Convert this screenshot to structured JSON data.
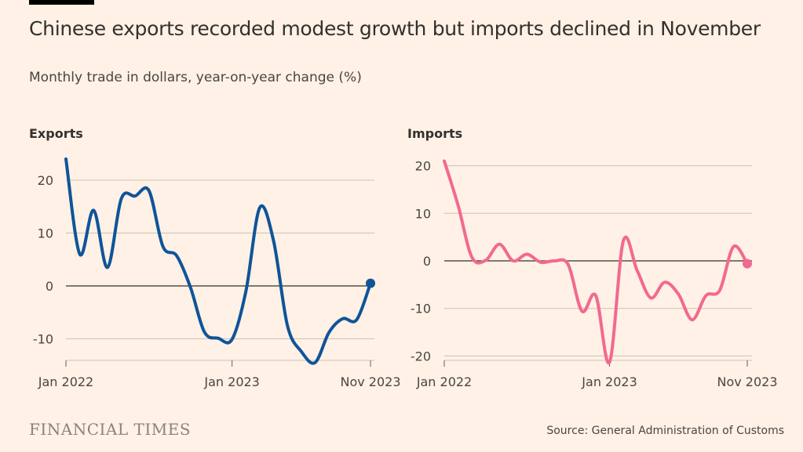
{
  "title": "Chinese exports recorded modest growth but imports declined in November",
  "subtitle": "Monthly trade in dollars, year-on-year change (%)",
  "source": "Source: General Administration of Customs",
  "logo": "FINANCIAL TIMES",
  "chart_data": [
    {
      "type": "line",
      "title": "Exports",
      "color": "#0f5499",
      "x": [
        "2022-01",
        "2022-02",
        "2022-03",
        "2022-04",
        "2022-05",
        "2022-06",
        "2022-07",
        "2022-08",
        "2022-09",
        "2022-10",
        "2022-11",
        "2022-12",
        "2023-01",
        "2023-02",
        "2023-03",
        "2023-04",
        "2023-05",
        "2023-06",
        "2023-07",
        "2023-08",
        "2023-09",
        "2023-10",
        "2023-11"
      ],
      "values": [
        24,
        6,
        14.3,
        3.5,
        16.5,
        17,
        18,
        7.5,
        5.7,
        -0.3,
        -8.7,
        -9.9,
        -10.1,
        -1,
        14.8,
        8.5,
        -7.5,
        -12.4,
        -14.5,
        -8.8,
        -6.2,
        -6.4,
        0.5
      ],
      "ylim": [
        -14.5,
        24
      ],
      "yticks": [
        {
          "v": 20,
          "label": "20"
        },
        {
          "v": 10,
          "label": "10"
        },
        {
          "v": 0,
          "label": "0"
        },
        {
          "v": -10,
          "label": "-10"
        }
      ],
      "xticks": [
        {
          "i": 0,
          "label": "Jan 2022"
        },
        {
          "i": 12,
          "label": "Jan 2023"
        },
        {
          "i": 22,
          "label": "Nov 2023"
        }
      ],
      "grid": true
    },
    {
      "type": "line",
      "title": "Imports",
      "color": "#f2698f",
      "x": [
        "2022-01",
        "2022-02",
        "2022-03",
        "2022-04",
        "2022-05",
        "2022-06",
        "2022-07",
        "2022-08",
        "2022-09",
        "2022-10",
        "2022-11",
        "2022-12",
        "2023-01",
        "2023-02",
        "2023-03",
        "2023-04",
        "2023-05",
        "2023-06",
        "2023-07",
        "2023-08",
        "2023-09",
        "2023-10",
        "2023-11"
      ],
      "values": [
        21,
        11.7,
        0.8,
        0.1,
        3.5,
        0,
        1.4,
        -0.3,
        0,
        -0.8,
        -10.6,
        -7.3,
        -21.3,
        4.2,
        -2,
        -7.8,
        -4.5,
        -7,
        -12.4,
        -7.3,
        -6.2,
        3,
        -0.6
      ],
      "ylim": [
        -21.3,
        21.5
      ],
      "yticks": [
        {
          "v": 20,
          "label": "20"
        },
        {
          "v": 10,
          "label": "10"
        },
        {
          "v": 0,
          "label": "0"
        },
        {
          "v": -10,
          "label": "-10"
        },
        {
          "v": -20,
          "label": "-20"
        }
      ],
      "xticks": [
        {
          "i": 0,
          "label": "Jan 2022"
        },
        {
          "i": 12,
          "label": "Jan 2023"
        },
        {
          "i": 22,
          "label": "Nov 2023"
        }
      ],
      "grid": true
    }
  ]
}
